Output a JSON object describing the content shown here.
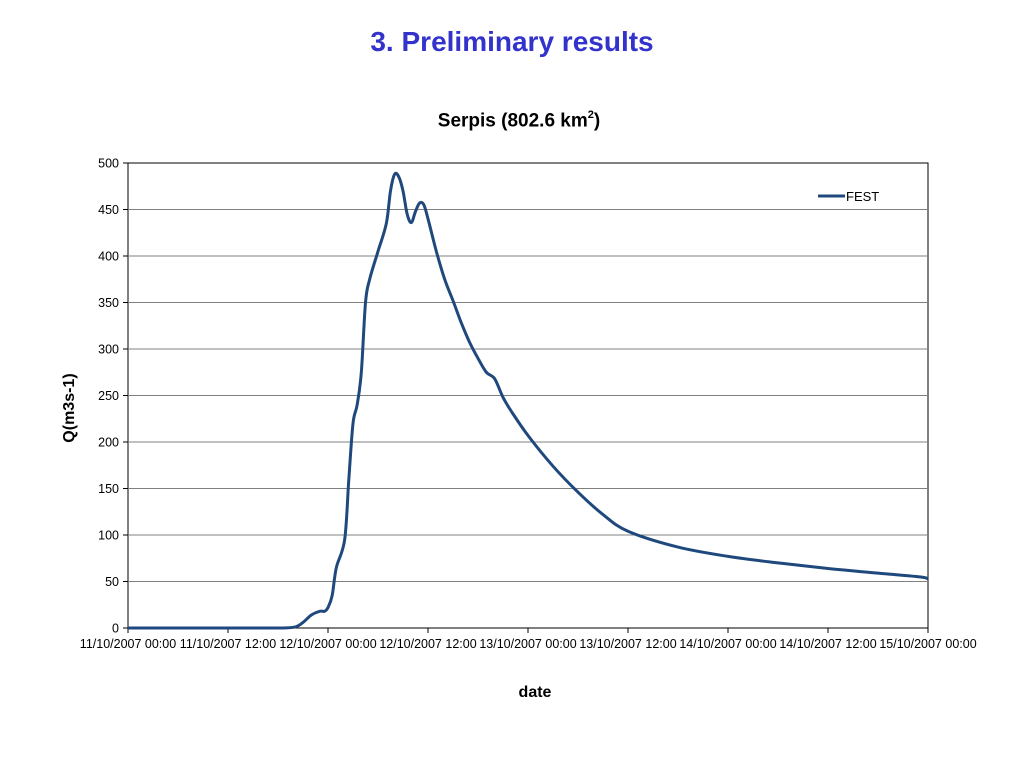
{
  "slide": {
    "title": "3. Preliminary results"
  },
  "chart_data": {
    "type": "line",
    "title": "Serpis (802.6 km",
    "title_superscript": "2",
    "title_suffix": ")",
    "xlabel": "date",
    "ylabel": "Q(m3s-1)",
    "ylim": [
      0,
      500
    ],
    "yticks": [
      0,
      50,
      100,
      150,
      200,
      250,
      300,
      350,
      400,
      450,
      500
    ],
    "xlim": [
      "11/10/2007 00:00",
      "15/10/2007 00:00"
    ],
    "xticks": [
      "11/10/2007 00:00",
      "11/10/2007 12:00",
      "12/10/2007 00:00",
      "12/10/2007 12:00",
      "13/10/2007 00:00",
      "13/10/2007 12:00",
      "14/10/2007 00:00",
      "14/10/2007 12:00",
      "15/10/2007 00:00"
    ],
    "grid": "horizontal",
    "legend_position": "top-right",
    "series": [
      {
        "name": "FEST",
        "color": "#1f497d",
        "points": [
          [
            "11/10/2007 00:00",
            0
          ],
          [
            "11/10/2007 06:00",
            0
          ],
          [
            "11/10/2007 12:00",
            0
          ],
          [
            "11/10/2007 18:00",
            0
          ],
          [
            "11/10/2007 20:00",
            1
          ],
          [
            "11/10/2007 21:00",
            6
          ],
          [
            "11/10/2007 22:00",
            14
          ],
          [
            "11/10/2007 23:00",
            18
          ],
          [
            "11/10/2007 23:36",
            18
          ],
          [
            "12/10/2007 00:00",
            22
          ],
          [
            "12/10/2007 00:30",
            35
          ],
          [
            "12/10/2007 01:00",
            65
          ],
          [
            "12/10/2007 02:00",
            95
          ],
          [
            "12/10/2007 02:30",
            160
          ],
          [
            "12/10/2007 03:00",
            220
          ],
          [
            "12/10/2007 03:30",
            240
          ],
          [
            "12/10/2007 04:00",
            275
          ],
          [
            "12/10/2007 04:30",
            350
          ],
          [
            "12/10/2007 05:00",
            375
          ],
          [
            "12/10/2007 06:00",
            405
          ],
          [
            "12/10/2007 07:00",
            435
          ],
          [
            "12/10/2007 07:30",
            470
          ],
          [
            "12/10/2007 08:00",
            488
          ],
          [
            "12/10/2007 08:30",
            485
          ],
          [
            "12/10/2007 09:00",
            470
          ],
          [
            "12/10/2007 09:30",
            445
          ],
          [
            "12/10/2007 10:00",
            436
          ],
          [
            "12/10/2007 10:30",
            448
          ],
          [
            "12/10/2007 11:00",
            457
          ],
          [
            "12/10/2007 11:30",
            455
          ],
          [
            "12/10/2007 12:00",
            440
          ],
          [
            "12/10/2007 13:00",
            405
          ],
          [
            "12/10/2007 14:00",
            375
          ],
          [
            "12/10/2007 15:00",
            352
          ],
          [
            "12/10/2007 16:00",
            328
          ],
          [
            "12/10/2007 17:00",
            307
          ],
          [
            "12/10/2007 18:00",
            290
          ],
          [
            "12/10/2007 19:00",
            275
          ],
          [
            "12/10/2007 20:00",
            268
          ],
          [
            "12/10/2007 21:00",
            248
          ],
          [
            "12/10/2007 22:00",
            233
          ],
          [
            "13/10/2007 00:00",
            207
          ],
          [
            "13/10/2007 03:00",
            174
          ],
          [
            "13/10/2007 06:00",
            146
          ],
          [
            "13/10/2007 09:00",
            122
          ],
          [
            "13/10/2007 12:00",
            104
          ],
          [
            "13/10/2007 18:00",
            87
          ],
          [
            "14/10/2007 00:00",
            77
          ],
          [
            "14/10/2007 06:00",
            70
          ],
          [
            "14/10/2007 12:00",
            64
          ],
          [
            "14/10/2007 18:00",
            59
          ],
          [
            "14/10/2007 23:00",
            55
          ],
          [
            "15/10/2007 00:00",
            53
          ]
        ]
      }
    ]
  }
}
